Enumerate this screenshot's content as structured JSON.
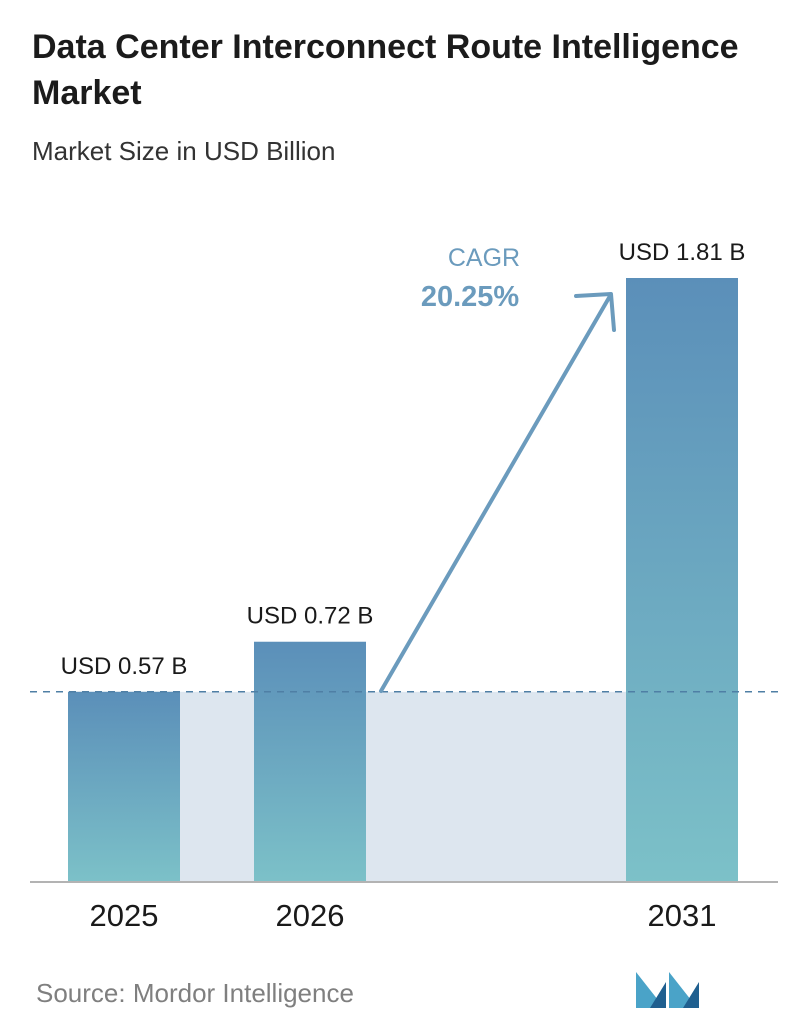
{
  "title": "Data Center Interconnect Route Intelligence Market",
  "subtitle": "Market Size in USD Billion",
  "source": "Source: Mordor Intelligence",
  "logo_icon": "mordor-intelligence-logo",
  "colors": {
    "bar_top": "#5b8fb9",
    "bar_bottom": "#7cc1c8",
    "band": "#dde6ef",
    "dashed_line": "#4f7fa5",
    "arrow": "#6b9bbd",
    "cagr_text": "#6b9bbd"
  },
  "chart_data": {
    "type": "bar",
    "categories": [
      "2025",
      "2026",
      "2031"
    ],
    "values": [
      0.57,
      0.72,
      1.81
    ],
    "value_labels": [
      "USD 0.57 B",
      "USD 0.72 B",
      "USD 1.81 B"
    ],
    "title": "Data Center Interconnect Route Intelligence Market",
    "subtitle": "Market Size in USD Billion",
    "xlabel": "",
    "ylabel": "",
    "ylim": [
      0,
      1.81
    ],
    "grid": false,
    "legend": "none",
    "annotations": {
      "cagr_label": "CAGR",
      "cagr_value": "20.25%",
      "reference_value": 0.57
    }
  }
}
